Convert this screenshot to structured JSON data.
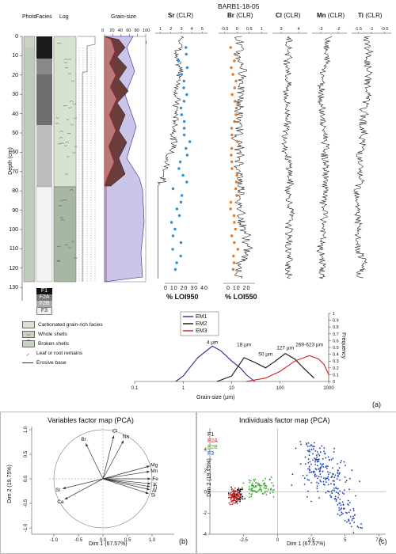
{
  "core_id": "BARB1-18-05",
  "column_headers": {
    "photo": "Photo",
    "facies": "Facies",
    "log": "Log",
    "grain_size": "Grain-size",
    "grain_size_unit": "(%)",
    "sr": "Sr",
    "br": "Br",
    "cl": "Cl",
    "mn": "Mn",
    "ti": "Ti",
    "clr": "(CLR)"
  },
  "depth_axis": {
    "label": "Depth (cm)",
    "ticks": [
      "0",
      "10",
      "20",
      "30",
      "40",
      "50",
      "60",
      "70",
      "80",
      "90",
      "100",
      "110",
      "120",
      "130"
    ]
  },
  "grain_size_ticks": [
    "0",
    "20",
    "40",
    "60",
    "80",
    "100"
  ],
  "facies_legend": [
    "F1",
    "F2A",
    "F2B",
    "F3"
  ],
  "loi_labels": {
    "loi950": "% LOI950",
    "loi550": "% LOI550"
  },
  "loi_ticks": [
    "0",
    "10",
    "20",
    "30",
    "40"
  ],
  "log_legend": [
    {
      "symbol": "carbonated",
      "label": "Carbonated grain-rich facies"
    },
    {
      "symbol": "whole-shells",
      "label": "Whole shells"
    },
    {
      "symbol": "broken-shells",
      "label": "Broken shells"
    },
    {
      "symbol": "leaf",
      "label": "Leaf or root remains"
    },
    {
      "symbol": "erosive",
      "label": "Erosive base"
    }
  ],
  "panel_labels": {
    "a": "(a)",
    "b": "(b)",
    "c": "(c)"
  },
  "colors": {
    "EM1": "#2b2b8c",
    "EM2": "#111111",
    "EM3": "#d42020",
    "F1": "#111111",
    "F2A": "#d42020",
    "F2B": "#3aa832",
    "F3": "#2242b0",
    "loi950": "#2a8fd4",
    "loi550": "#e07a2a"
  },
  "chart_data": [
    {
      "type": "line",
      "title": "",
      "xlabel": "Grain-size (µm)",
      "ylabel": "Frequency",
      "xscale": "log",
      "xlim": [
        0.1,
        1000
      ],
      "ylim": [
        0,
        1
      ],
      "x_ticks": [
        "0.1",
        "1",
        "10",
        "100",
        "1000"
      ],
      "y_ticks": [
        "0",
        "0.1",
        "0.2",
        "0.3",
        "0.4",
        "0.5",
        "0.6",
        "0.7",
        "0.8",
        "0.9",
        "1"
      ],
      "series": [
        {
          "name": "EM1",
          "x": [
            0.7,
            1,
            2,
            4,
            6,
            10,
            15,
            20,
            30
          ],
          "y": [
            0,
            0.08,
            0.35,
            0.52,
            0.45,
            0.3,
            0.2,
            0.1,
            0
          ]
        },
        {
          "name": "EM2",
          "x": [
            5,
            10,
            18,
            30,
            50,
            80,
            127,
            200,
            300,
            500
          ],
          "y": [
            0,
            0.08,
            0.35,
            0.28,
            0.2,
            0.3,
            0.41,
            0.33,
            0.2,
            0.05
          ]
        },
        {
          "name": "EM3",
          "x": [
            20,
            50,
            100,
            200,
            400,
            623,
            800,
            1000
          ],
          "y": [
            0,
            0.05,
            0.15,
            0.3,
            0.38,
            0.33,
            0.25,
            0.1
          ]
        }
      ],
      "annotations": [
        "4 µm",
        "18 µm",
        "50 µm",
        "127 µm",
        "269-623 µm"
      ]
    },
    {
      "type": "scatter",
      "title": "Variables factor map (PCA)",
      "xlabel": "Dim 1 (67.57%)",
      "ylabel": "Dim 2 (19.75%)",
      "xlim": [
        -1.1,
        1.1
      ],
      "ylim": [
        -1.1,
        1.1
      ],
      "x_ticks": [
        "-1.0",
        "-0.5",
        "0.0",
        "0.5",
        "1.0"
      ],
      "y_ticks": [
        "-1.0",
        "-0.5",
        "0.0",
        "0.5",
        "1.0"
      ],
      "vectors": [
        {
          "name": "Br",
          "x": -0.35,
          "y": 0.72
        },
        {
          "name": "Cl",
          "x": 0.22,
          "y": 0.88
        },
        {
          "name": "Na",
          "x": 0.42,
          "y": 0.78
        },
        {
          "name": "Mg",
          "x": 0.95,
          "y": 0.26
        },
        {
          "name": "Mn",
          "x": 0.95,
          "y": 0.15
        },
        {
          "name": "Fe",
          "x": 0.97,
          "y": 0.0
        },
        {
          "name": "K",
          "x": 0.97,
          "y": -0.1
        },
        {
          "name": "Ti",
          "x": 0.96,
          "y": -0.16
        },
        {
          "name": "Al",
          "x": 0.95,
          "y": -0.22
        },
        {
          "name": "Si",
          "x": 0.93,
          "y": -0.3
        },
        {
          "name": "Sr",
          "x": -0.82,
          "y": -0.2
        },
        {
          "name": "Ca",
          "x": -0.78,
          "y": -0.42
        }
      ]
    },
    {
      "type": "scatter",
      "title": "Individuals factor map (PCA)",
      "xlabel": "Dim 1 (67.57%)",
      "ylabel": "Dim 2 (19.75%)",
      "xlim": [
        -5,
        8
      ],
      "ylim": [
        -4,
        6
      ],
      "x_ticks": [
        "-2.5",
        "0",
        "2.5",
        "5",
        "7.5"
      ],
      "y_ticks": [
        "-4",
        "-2",
        "0",
        "2",
        "4"
      ],
      "series": [
        {
          "name": "F1",
          "center": [
            -3.0,
            -0.3
          ],
          "spread": [
            0.35,
            0.5
          ]
        },
        {
          "name": "F2A",
          "center": [
            -3.2,
            -0.4
          ],
          "spread": [
            0.3,
            0.45
          ]
        },
        {
          "name": "F2B",
          "center": [
            -1.3,
            0.4
          ],
          "spread": [
            0.8,
            0.6
          ]
        },
        {
          "name": "F3",
          "center": [
            3.8,
            1.0
          ],
          "spread": [
            1.2,
            2.0
          ]
        }
      ]
    }
  ]
}
